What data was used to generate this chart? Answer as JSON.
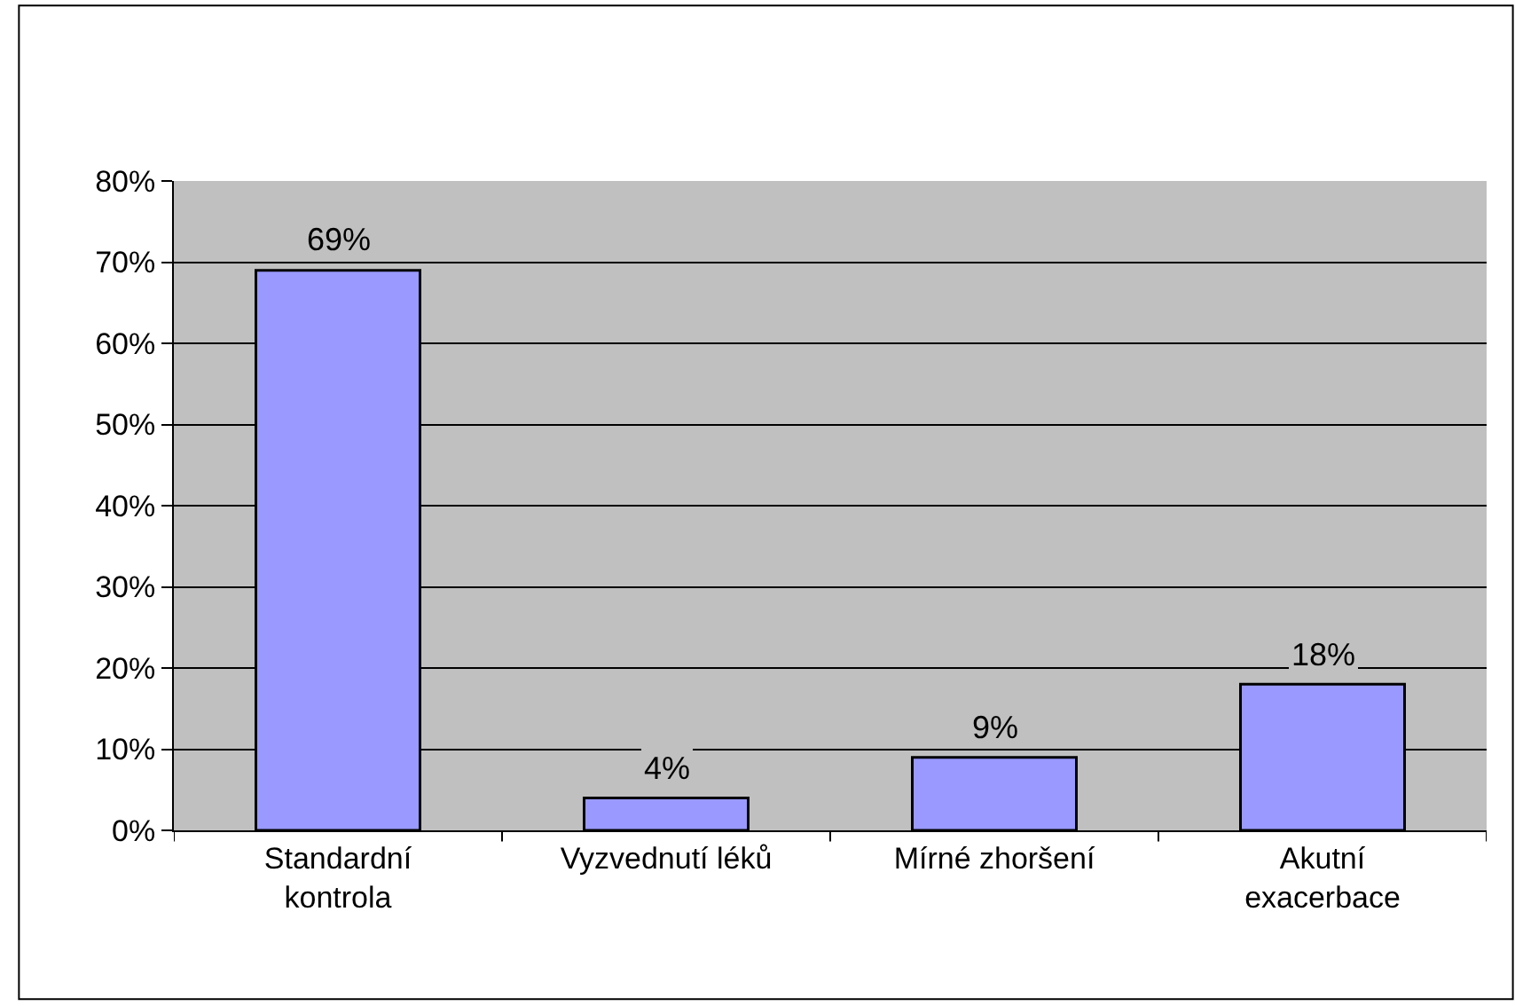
{
  "chart_data": {
    "type": "bar",
    "categories": [
      "Standardní kontrola",
      "Vyzvednutí léků",
      "Mírné zhoršení",
      "Akutní exacerbace"
    ],
    "values": [
      69,
      4,
      9,
      18
    ],
    "value_labels": [
      "69%",
      "4%",
      "9%",
      "18%"
    ],
    "color": "#9999ff",
    "ylim": [
      0,
      80
    ],
    "yticks": [
      {
        "value": 0,
        "label": "0%"
      },
      {
        "value": 10,
        "label": "10%"
      },
      {
        "value": 20,
        "label": "20%"
      },
      {
        "value": 30,
        "label": "30%"
      },
      {
        "value": 40,
        "label": "40%"
      },
      {
        "value": 50,
        "label": "50%"
      },
      {
        "value": 60,
        "label": "60%"
      },
      {
        "value": 70,
        "label": "70%"
      },
      {
        "value": 80,
        "label": "80%"
      }
    ],
    "grid": "y"
  }
}
